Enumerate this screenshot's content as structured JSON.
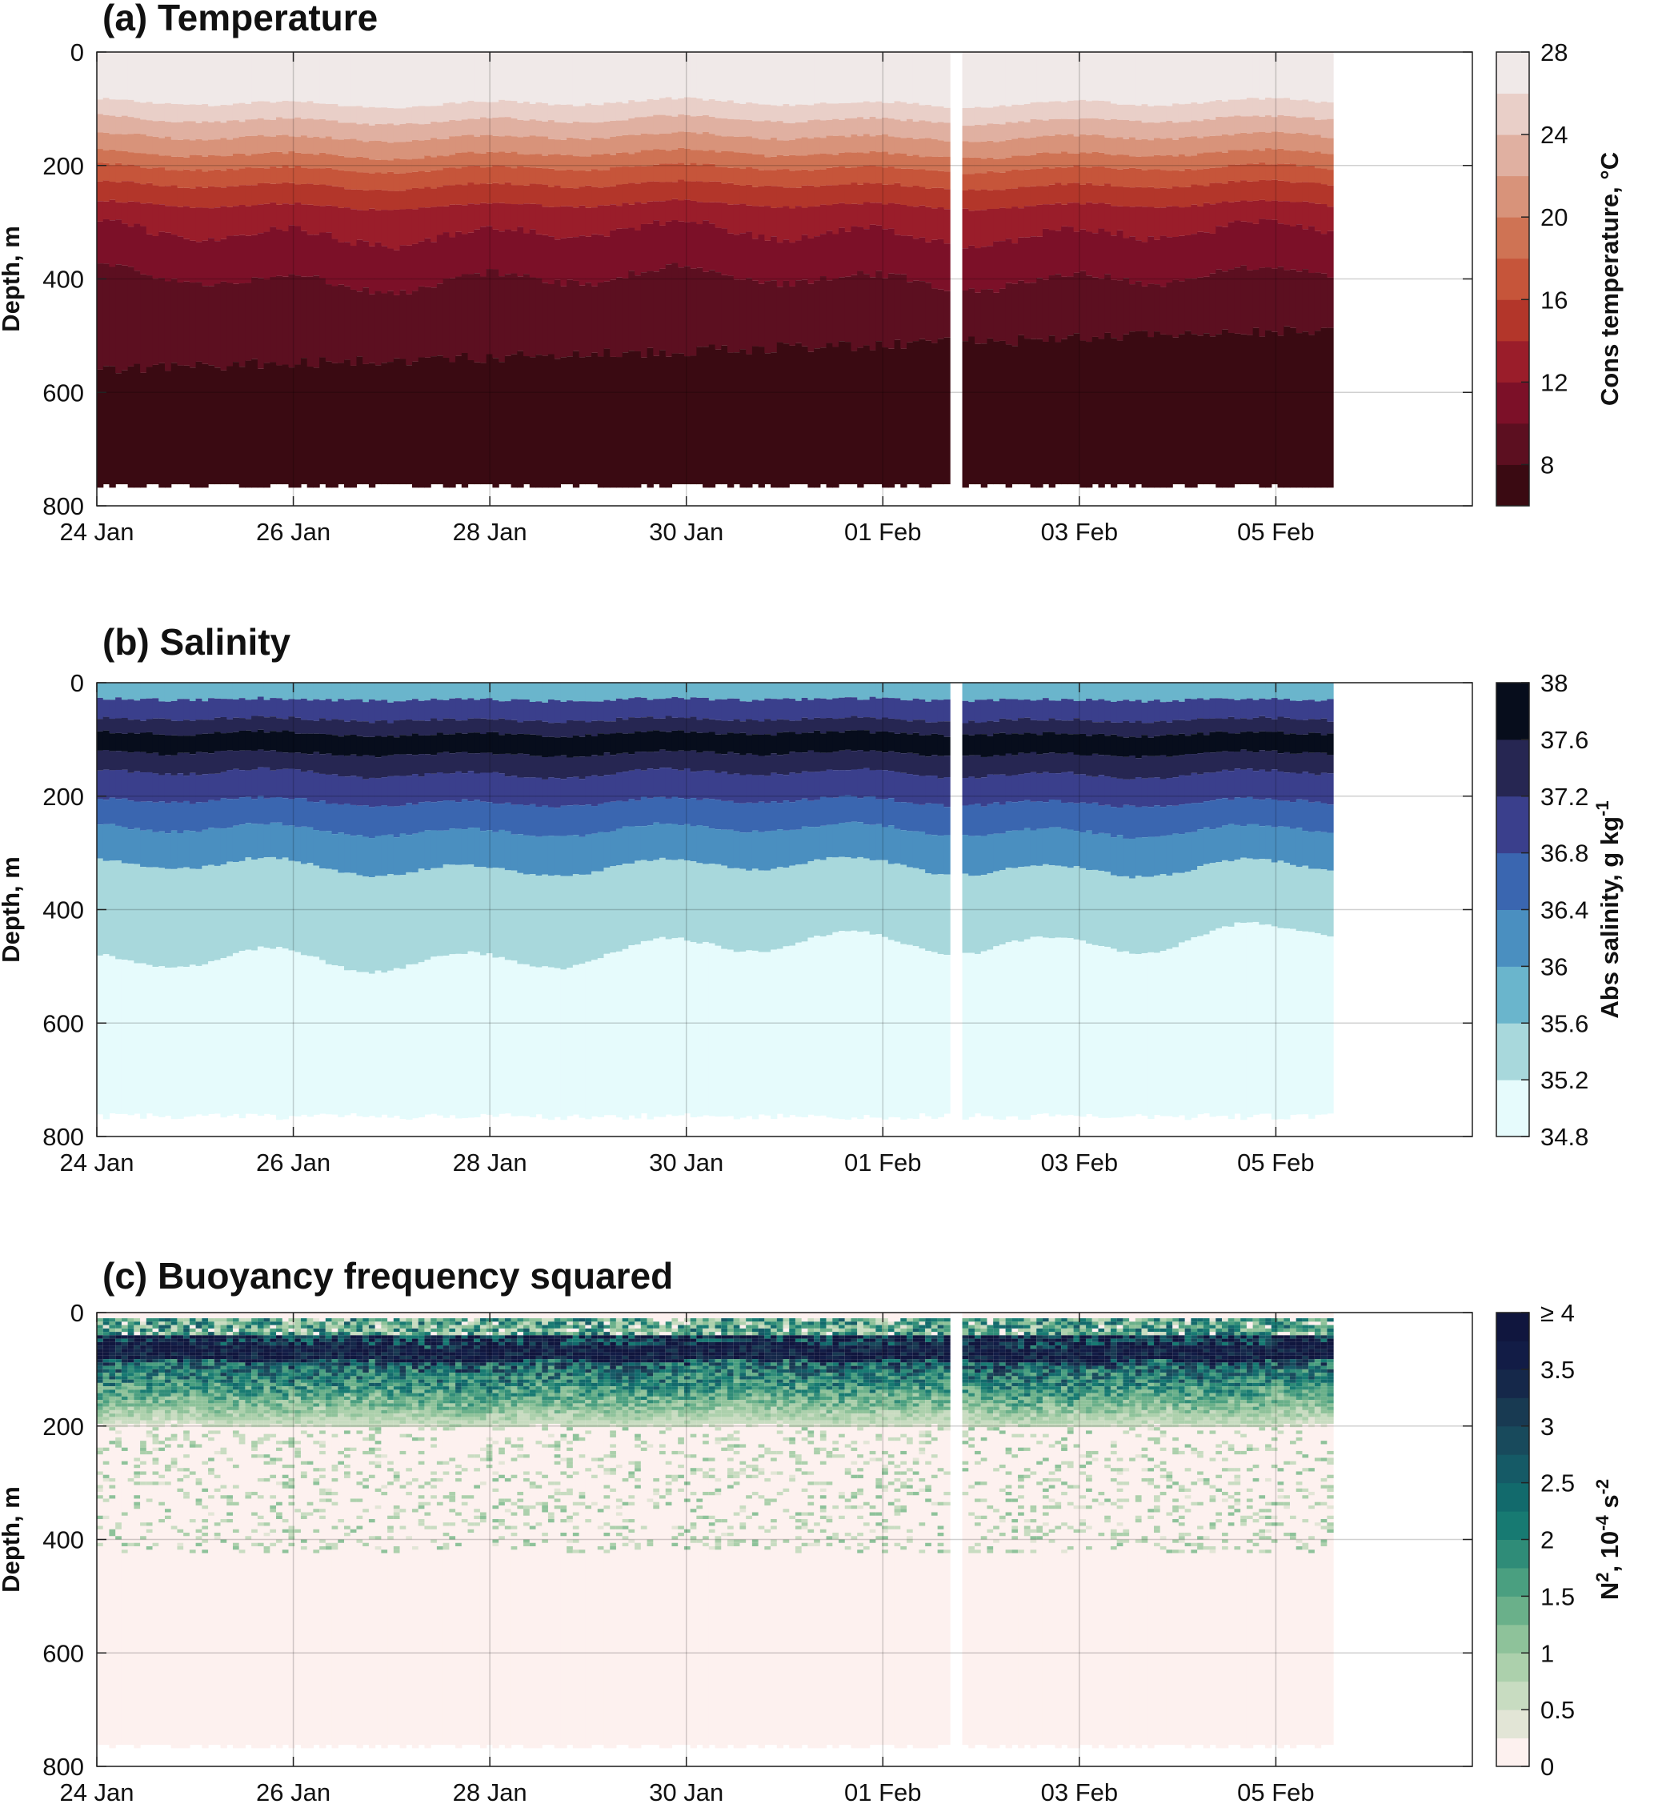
{
  "chart_data": [
    {
      "type": "heatmap",
      "panel": "a",
      "title": "(a) Temperature",
      "ylabel": "Depth, m",
      "y_ticks": [
        0,
        200,
        400,
        600,
        800
      ],
      "ylim": [
        800,
        0
      ],
      "x_ticks": [
        "24 Jan",
        "26 Jan",
        "28 Jan",
        "30 Jan",
        "01 Feb",
        "03 Feb",
        "05 Feb"
      ],
      "xlim": [
        "2024-01-24",
        "2024-02-07"
      ],
      "grid": true,
      "colorbar": {
        "label": "Cons temperature, °C",
        "tick_labels": [
          "8",
          "12",
          "16",
          "20",
          "24",
          "28"
        ],
        "tick_values": [
          8,
          12,
          16,
          20,
          24,
          28
        ],
        "range": [
          6,
          28
        ],
        "levels": [
          "#3a0a12",
          "#5c0f20",
          "#7c1028",
          "#9a1d2a",
          "#b3362a",
          "#c6553a",
          "#cf7354",
          "#d8937a",
          "#e0b0a1",
          "#e9cfc8",
          "#f0e9e8"
        ]
      },
      "profile_boundaries_m": [
        90,
        120,
        150,
        180,
        205,
        235,
        270,
        320,
        400,
        560,
        760
      ],
      "data_gap": [
        "2024-02-01 16:00",
        "2024-02-01 20:00"
      ]
    },
    {
      "type": "heatmap",
      "panel": "b",
      "title": "(b) Salinity",
      "ylabel": "Depth, m",
      "y_ticks": [
        0,
        200,
        400,
        600,
        800
      ],
      "ylim": [
        800,
        0
      ],
      "x_ticks": [
        "24 Jan",
        "26 Jan",
        "28 Jan",
        "30 Jan",
        "01 Feb",
        "03 Feb",
        "05 Feb"
      ],
      "xlim": [
        "2024-01-24",
        "2024-02-07"
      ],
      "grid": true,
      "colorbar": {
        "label": "Abs salinity, g kg",
        "label_superscript": "-1",
        "tick_labels": [
          "34.8",
          "35.2",
          "35.6",
          "36",
          "36.4",
          "36.8",
          "37.2",
          "37.6",
          "38"
        ],
        "tick_values": [
          34.8,
          35.2,
          35.6,
          36,
          36.4,
          36.8,
          37.2,
          37.6,
          38
        ],
        "range": [
          34.8,
          38
        ],
        "levels": [
          "#e6fbfc",
          "#a8d8dc",
          "#6ab5cc",
          "#4a8fc0",
          "#3a66b0",
          "#3a3f8c",
          "#262652",
          "#070d1c"
        ]
      },
      "data_gap": [
        "2024-02-01 16:00",
        "2024-02-01 20:00"
      ]
    },
    {
      "type": "heatmap",
      "panel": "c",
      "title": "(c) Buoyancy frequency squared",
      "ylabel": "Depth, m",
      "y_ticks": [
        0,
        200,
        400,
        600,
        800
      ],
      "ylim": [
        800,
        0
      ],
      "x_ticks": [
        "24 Jan",
        "26 Jan",
        "28 Jan",
        "30 Jan",
        "01 Feb",
        "03 Feb",
        "05 Feb"
      ],
      "xlim": [
        "2024-01-24",
        "2024-02-07"
      ],
      "grid": true,
      "colorbar": {
        "label": "N",
        "label_exponent": "2",
        "label_rest": ", 10",
        "label_rest_exponent": "-4",
        "label_unit": " s",
        "label_unit_exponent": "-2",
        "tick_labels": [
          "0",
          "0.5",
          "1",
          "1.5",
          "2",
          "2.5",
          "3",
          "3.5",
          "≥ 4"
        ],
        "tick_values": [
          0,
          0.5,
          1,
          1.5,
          2,
          2.5,
          3,
          3.5,
          4
        ],
        "range": [
          0,
          4
        ],
        "levels": [
          "#fdf1ef",
          "#e2e5d6",
          "#c8dcc1",
          "#acd0ac",
          "#8ec29a",
          "#6ab08a",
          "#4a9f80",
          "#2f8c78",
          "#177a72",
          "#126a6c",
          "#155a66",
          "#184a5c",
          "#183a52",
          "#15284a",
          "#121c46",
          "#10163e"
        ]
      },
      "data_gap": [
        "2024-02-01 16:00",
        "2024-02-01 20:00"
      ]
    }
  ]
}
